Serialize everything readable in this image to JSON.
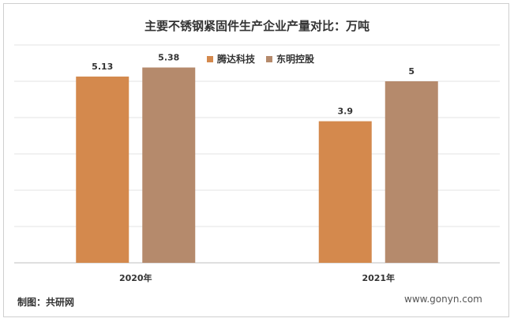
{
  "chart_data": {
    "type": "bar",
    "title": "主要不锈钢紧固件生产企业产量对比：万吨",
    "categories": [
      "2020年",
      "2021年"
    ],
    "series": [
      {
        "name": "腾达科技",
        "values": [
          5.13,
          3.9
        ],
        "color": "#D4894D"
      },
      {
        "name": "东明控股",
        "values": [
          5.38,
          5
        ],
        "color": "#B58A6C"
      }
    ],
    "value_labels": [
      [
        "5.13",
        "3.9"
      ],
      [
        "5.38",
        "5"
      ]
    ],
    "ylim": [
      0,
      6
    ],
    "grid": true,
    "legend_position": "top-center"
  },
  "source": "制图：共研网",
  "watermark": "www.gonyn.com"
}
